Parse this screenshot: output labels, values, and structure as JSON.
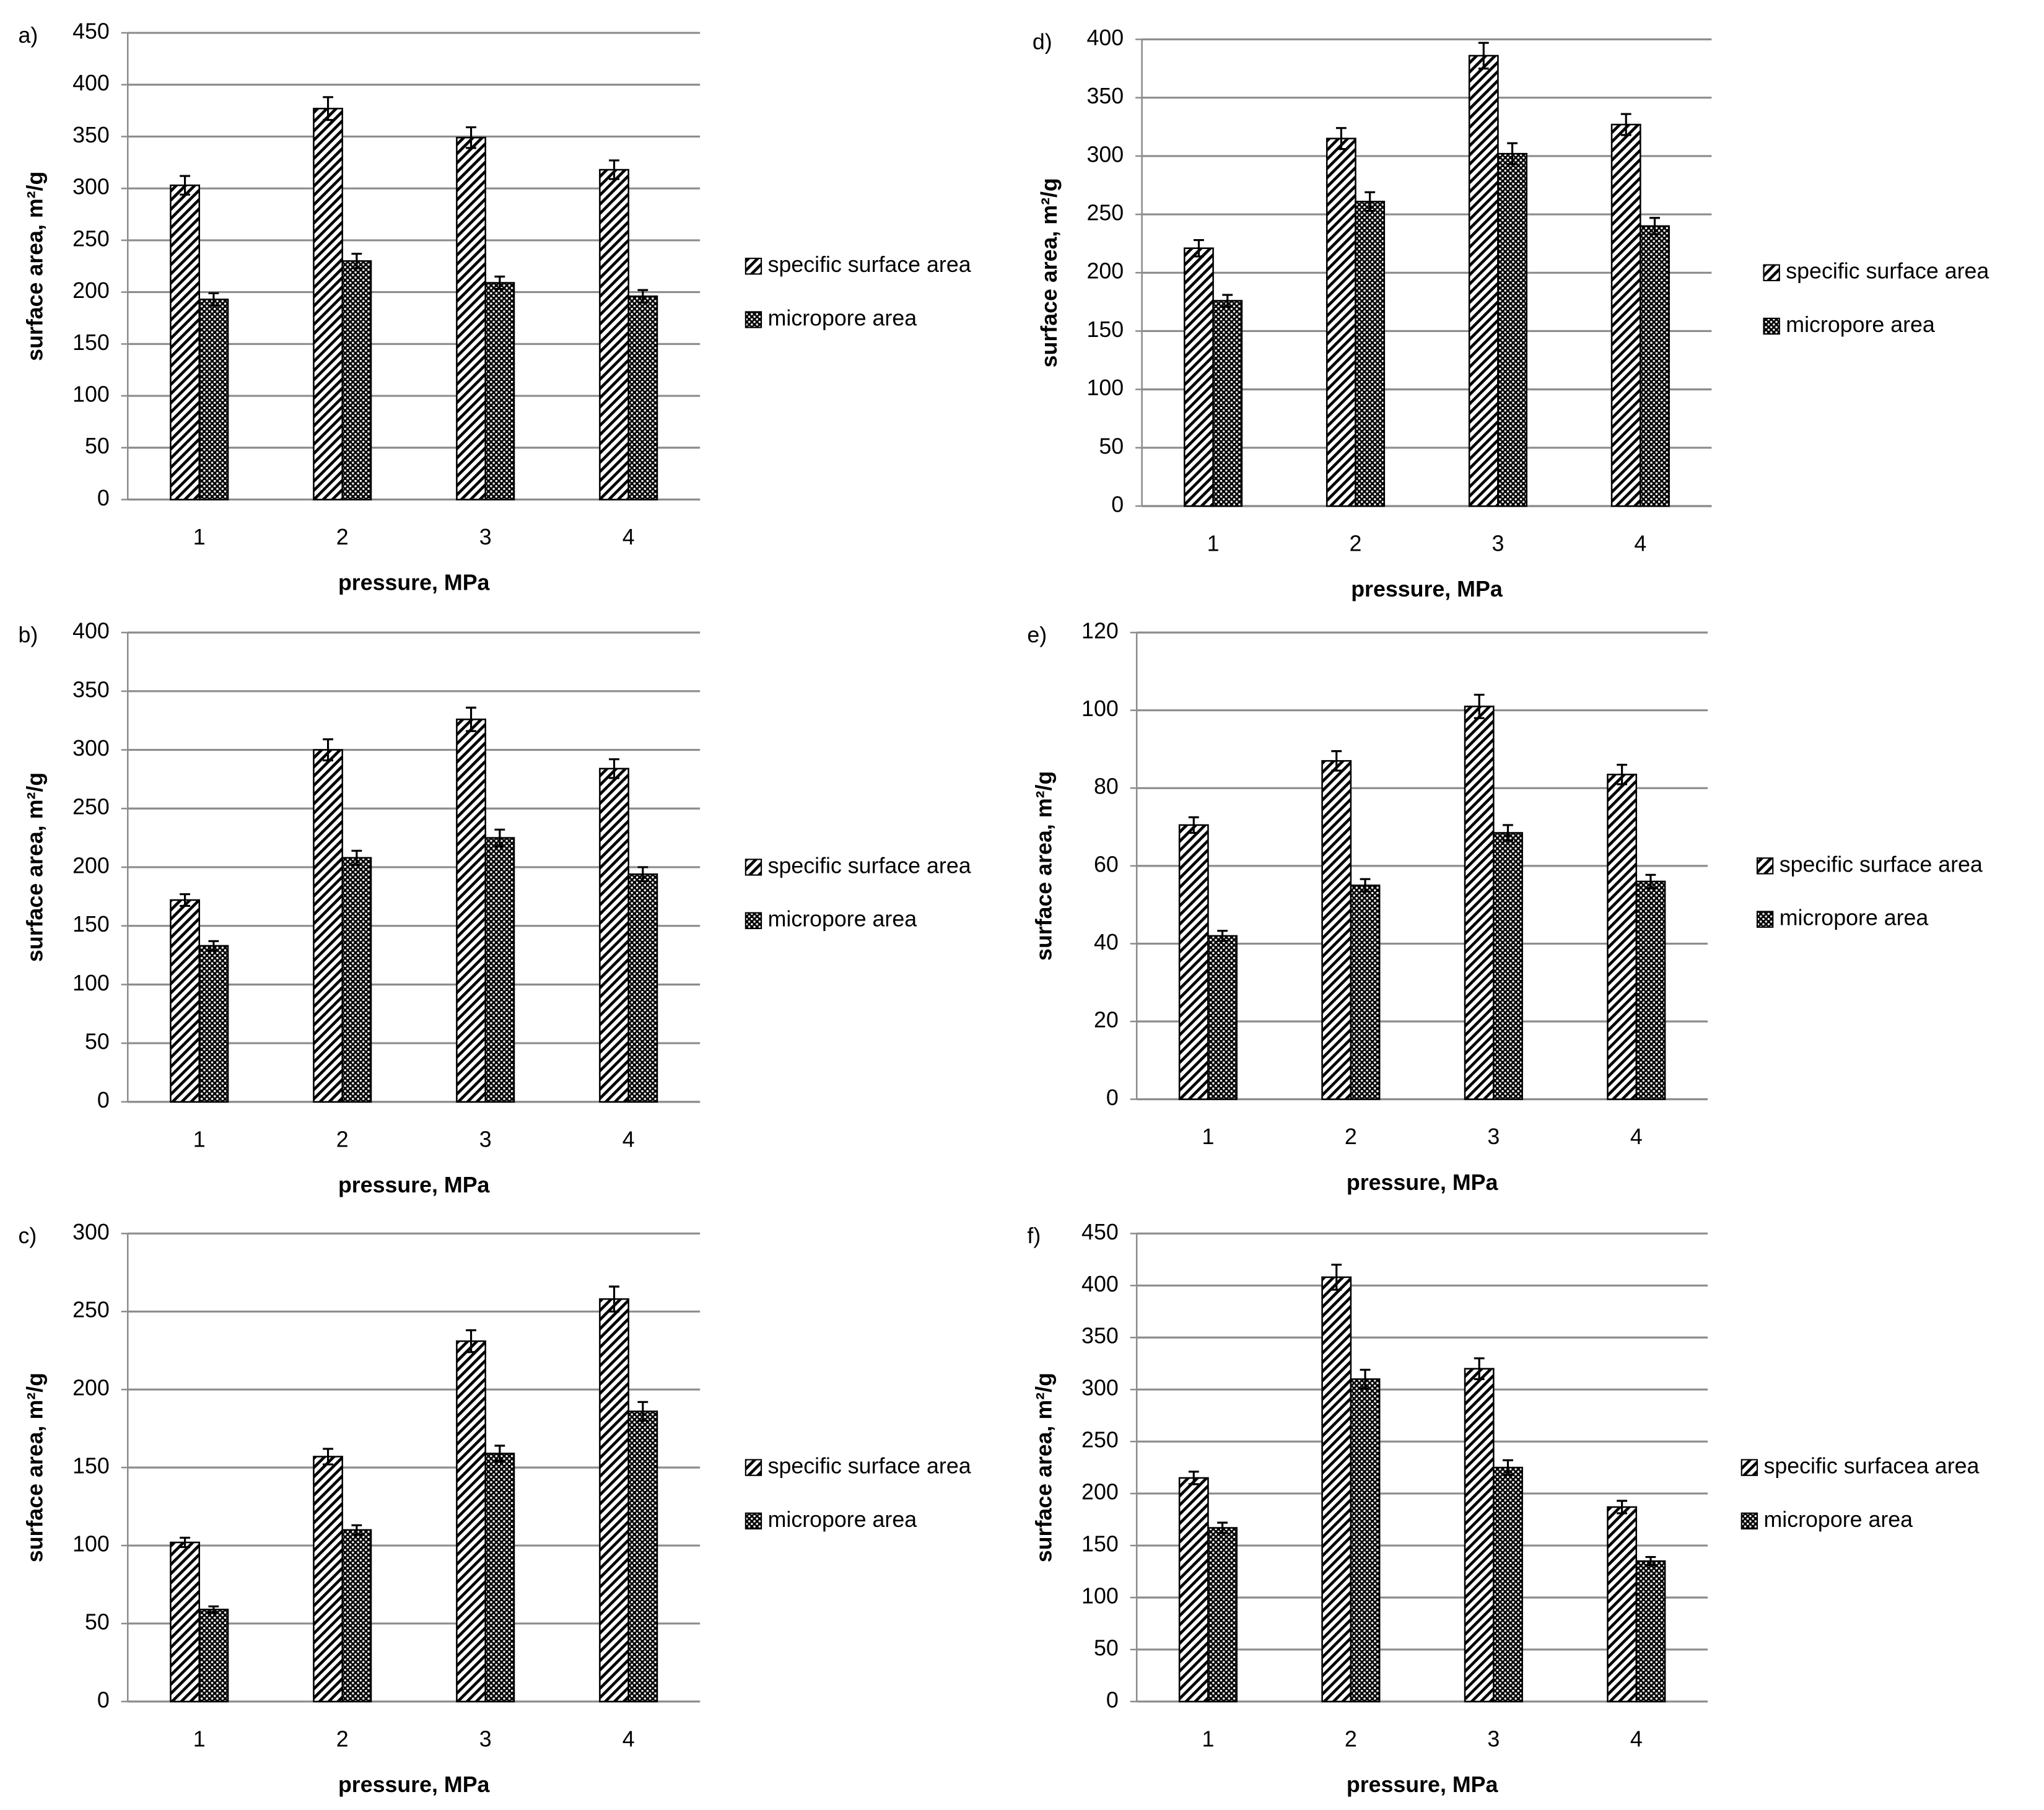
{
  "chart_data": [
    {
      "type": "bar",
      "panel_label": "a)",
      "y_label": "surface area, m²/g",
      "x_label": "pressure, MPa",
      "categories": [
        "1",
        "2",
        "3",
        "4"
      ],
      "ylim": [
        0,
        450
      ],
      "yticks": [
        0,
        50,
        100,
        150,
        200,
        250,
        300,
        350,
        400,
        450
      ],
      "grid": true,
      "legend": "right",
      "series": [
        {
          "name": "specific surface area",
          "color": "#000000",
          "pattern": "diagonal",
          "values": [
            303,
            377,
            349,
            318
          ],
          "errors": [
            9,
            11,
            10,
            9
          ]
        },
        {
          "name": "micropore area",
          "color": "#000000",
          "pattern": "checker",
          "values": [
            193,
            230,
            209,
            196
          ],
          "errors": [
            6,
            7,
            6,
            6
          ]
        }
      ]
    },
    {
      "type": "bar",
      "panel_label": "d)",
      "y_label": "surface area, m²/g",
      "x_label": "pressure, MPa",
      "categories": [
        "1",
        "2",
        "3",
        "4"
      ],
      "ylim": [
        0,
        400
      ],
      "yticks": [
        0,
        50,
        100,
        150,
        200,
        250,
        300,
        350,
        400
      ],
      "grid": true,
      "legend": "right",
      "series": [
        {
          "name": "specific surface area",
          "color": "#000000",
          "pattern": "diagonal",
          "values": [
            221,
            315,
            386,
            327
          ],
          "errors": [
            7,
            9,
            11,
            9
          ]
        },
        {
          "name": "micropore area",
          "color": "#000000",
          "pattern": "checker",
          "values": [
            176,
            261,
            302,
            240
          ],
          "errors": [
            5,
            8,
            9,
            7
          ]
        }
      ]
    },
    {
      "type": "bar",
      "panel_label": "b)",
      "y_label": "surface area, m²/g",
      "x_label": "pressure, MPa",
      "categories": [
        "1",
        "2",
        "3",
        "4"
      ],
      "ylim": [
        0,
        400
      ],
      "yticks": [
        0,
        50,
        100,
        150,
        200,
        250,
        300,
        350,
        400
      ],
      "grid": true,
      "legend": "right",
      "series": [
        {
          "name": "specific surface area",
          "color": "#000000",
          "pattern": "diagonal",
          "values": [
            172,
            300,
            326,
            284
          ],
          "errors": [
            5,
            9,
            10,
            8
          ]
        },
        {
          "name": "micropore area",
          "color": "#000000",
          "pattern": "checker",
          "values": [
            133,
            208,
            225,
            194
          ],
          "errors": [
            4,
            6,
            7,
            6
          ]
        }
      ]
    },
    {
      "type": "bar",
      "panel_label": "e)",
      "y_label": "surface area, m²/g",
      "x_label": "pressure, MPa",
      "categories": [
        "1",
        "2",
        "3",
        "4"
      ],
      "ylim": [
        0,
        120
      ],
      "yticks": [
        0,
        20,
        40,
        60,
        80,
        100,
        120
      ],
      "grid": true,
      "legend": "right",
      "series": [
        {
          "name": "specific surface area",
          "color": "#000000",
          "pattern": "diagonal",
          "values": [
            70.5,
            87,
            101,
            83.5
          ],
          "errors": [
            2,
            2.5,
            3,
            2.5
          ]
        },
        {
          "name": "micropore area",
          "color": "#000000",
          "pattern": "checker",
          "values": [
            42,
            55,
            68.5,
            56
          ],
          "errors": [
            1.3,
            1.6,
            2,
            1.7
          ]
        }
      ]
    },
    {
      "type": "bar",
      "panel_label": "c)",
      "y_label": "surface area, m²/g",
      "x_label": "pressure, MPa",
      "categories": [
        "1",
        "2",
        "3",
        "4"
      ],
      "ylim": [
        0,
        300
      ],
      "yticks": [
        0,
        50,
        100,
        150,
        200,
        250,
        300
      ],
      "grid": true,
      "legend": "right",
      "series": [
        {
          "name": "specific surface area",
          "color": "#000000",
          "pattern": "diagonal",
          "values": [
            102,
            157,
            231,
            258
          ],
          "errors": [
            3,
            5,
            7,
            8
          ]
        },
        {
          "name": "micropore area",
          "color": "#000000",
          "pattern": "checker",
          "values": [
            59,
            110,
            159,
            186
          ],
          "errors": [
            2,
            3,
            5,
            6
          ]
        }
      ]
    },
    {
      "type": "bar",
      "panel_label": "f)",
      "y_label": "surface area, m²/g",
      "x_label": "pressure, MPa",
      "categories": [
        "1",
        "2",
        "3",
        "4"
      ],
      "ylim": [
        0,
        450
      ],
      "yticks": [
        0,
        50,
        100,
        150,
        200,
        250,
        300,
        350,
        400,
        450
      ],
      "grid": true,
      "legend": "right",
      "series": [
        {
          "name": "specific surfacea area",
          "color": "#000000",
          "pattern": "diagonal",
          "values": [
            215,
            408,
            320,
            187
          ],
          "errors": [
            6,
            12,
            10,
            6
          ]
        },
        {
          "name": "micropore area",
          "color": "#000000",
          "pattern": "checker",
          "values": [
            167,
            310,
            225,
            135
          ],
          "errors": [
            5,
            9,
            7,
            4
          ]
        }
      ]
    }
  ]
}
